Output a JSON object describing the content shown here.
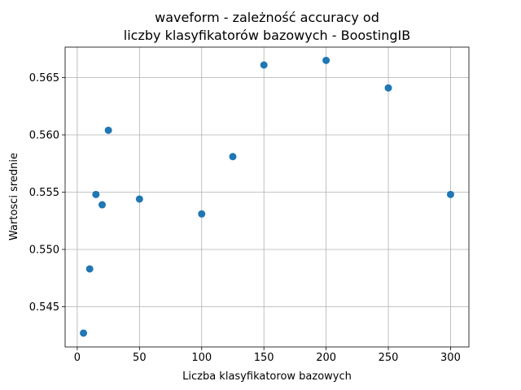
{
  "chart_data": {
    "type": "scatter",
    "title_lines": [
      "waveform - zależność accuracy od",
      "liczby klasyfikatorów bazowych - BoostingIB"
    ],
    "xlabel": "Liczba klasyfikatorow bazowych",
    "ylabel": "Wartosci srednie",
    "xlim": [
      -9.75,
      314.75
    ],
    "ylim": [
      0.54149,
      0.56766
    ],
    "xticks": [
      0,
      50,
      100,
      150,
      200,
      250,
      300
    ],
    "xtick_labels": [
      "0",
      "50",
      "100",
      "150",
      "200",
      "250",
      "300"
    ],
    "yticks": [
      0.545,
      0.55,
      0.555,
      0.56,
      0.565
    ],
    "ytick_labels": [
      "0.545",
      "0.550",
      "0.555",
      "0.560",
      "0.565"
    ],
    "grid": true,
    "color": "#1f77b4",
    "points": [
      {
        "x": 5,
        "y": 0.5427
      },
      {
        "x": 10,
        "y": 0.5483
      },
      {
        "x": 15,
        "y": 0.5548
      },
      {
        "x": 20,
        "y": 0.5539
      },
      {
        "x": 25,
        "y": 0.5604
      },
      {
        "x": 50,
        "y": 0.5544
      },
      {
        "x": 100,
        "y": 0.5531
      },
      {
        "x": 125,
        "y": 0.5581
      },
      {
        "x": 150,
        "y": 0.5661
      },
      {
        "x": 200,
        "y": 0.5665
      },
      {
        "x": 250,
        "y": 0.5641
      },
      {
        "x": 300,
        "y": 0.5548
      }
    ]
  }
}
